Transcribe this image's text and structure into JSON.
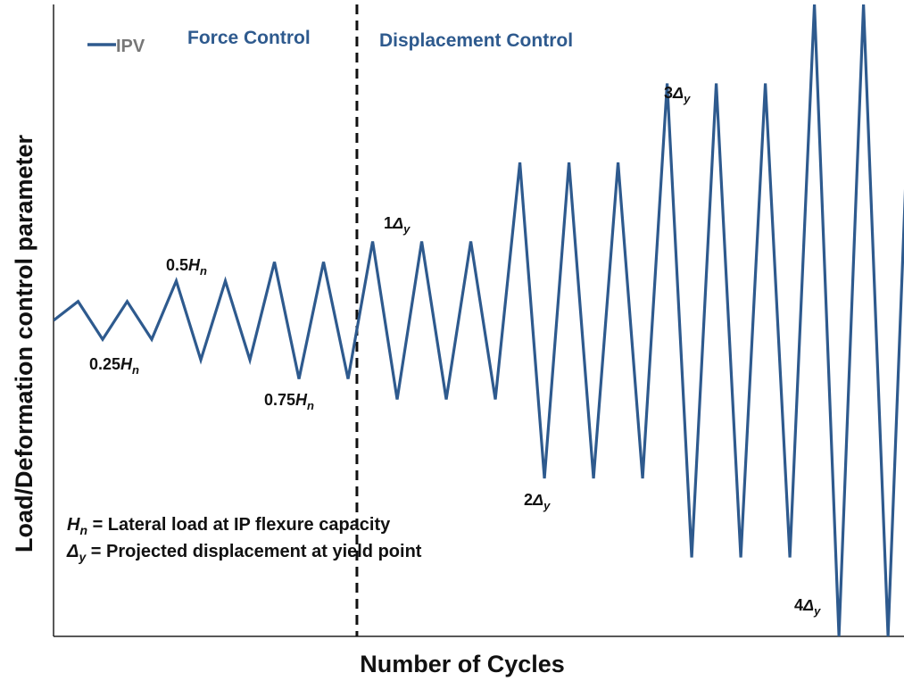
{
  "chart_data": {
    "type": "line",
    "xlabel": "Number of Cycles",
    "ylabel": "Load/Deformation control parameter",
    "x": [
      0,
      1,
      2,
      3,
      4,
      5,
      6,
      7,
      8,
      9,
      10,
      11,
      12,
      13,
      14,
      15,
      16,
      17,
      18,
      19,
      20,
      21,
      22,
      23,
      24,
      25,
      26,
      27,
      28,
      29,
      30,
      31,
      32,
      33,
      34,
      35
    ],
    "series": [
      {
        "name": "IPV",
        "color": "#2e5a8e",
        "values": [
          0,
          0.6,
          -0.6,
          0.6,
          -0.6,
          1.25,
          -1.25,
          1.25,
          -1.25,
          1.85,
          -1.85,
          1.85,
          -1.85,
          2.5,
          -2.5,
          2.5,
          -2.5,
          2.5,
          -2.5,
          5,
          -5,
          5,
          -5,
          5,
          -5,
          7.5,
          -7.5,
          7.5,
          -7.5,
          7.5,
          -7.5,
          10,
          -10,
          10,
          -10,
          10
        ]
      }
    ],
    "xlim": [
      0,
      34.65
    ],
    "ylim": [
      -10,
      10
    ],
    "divider_x": 12.36,
    "regions": [
      "Force Control",
      "Displacement Control"
    ],
    "annotations": [
      {
        "prefix": "0.5",
        "symbol": "H",
        "sub": "n"
      },
      {
        "prefix": "0.25",
        "symbol": "H",
        "sub": "n"
      },
      {
        "prefix": "0.75",
        "symbol": "H",
        "sub": "n"
      },
      {
        "prefix": "1",
        "symbol": "Δ",
        "sub": "y"
      },
      {
        "prefix": "2",
        "symbol": "Δ",
        "sub": "y"
      },
      {
        "prefix": "3",
        "symbol": "Δ",
        "sub": "y"
      },
      {
        "prefix": "4",
        "symbol": "Δ",
        "sub": "y"
      }
    ],
    "notes": [
      {
        "symbol": "H",
        "sub": "n",
        "text": " = Lateral load at IP flexure capacity"
      },
      {
        "symbol": "Δ",
        "sub": "y",
        "text": " = Projected displacement at yield point"
      }
    ]
  }
}
